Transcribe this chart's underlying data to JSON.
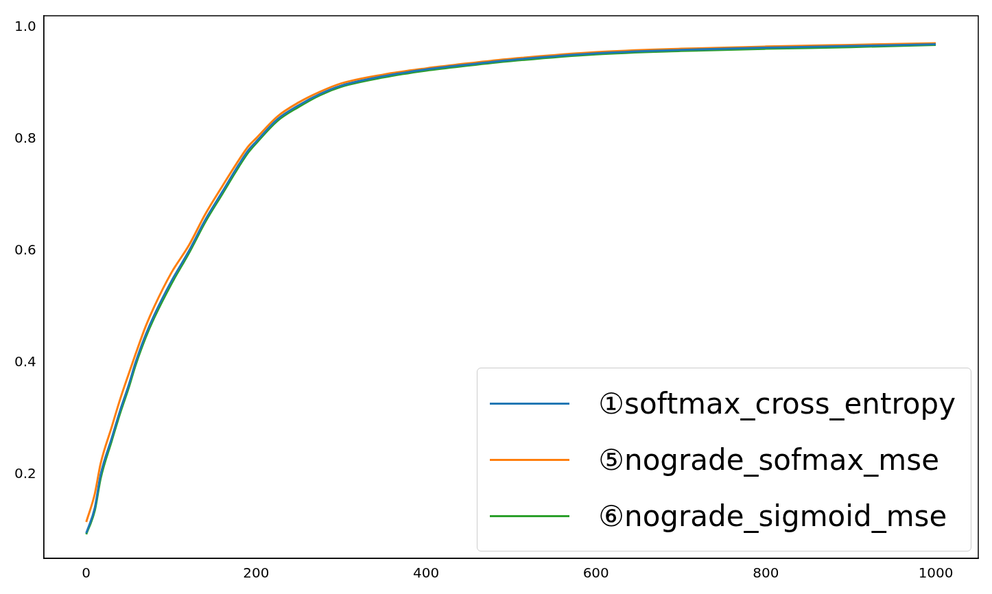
{
  "chart_data": {
    "type": "line",
    "x": [
      0,
      10,
      17,
      30,
      40,
      50,
      58,
      70,
      80,
      100,
      121,
      140,
      160,
      180,
      191,
      200,
      225,
      250,
      275,
      300,
      350,
      400,
      450,
      500,
      600,
      700,
      800,
      900,
      1000
    ],
    "series": [
      {
        "name": "①softmax_cross_entropy",
        "color": "#1f77b4",
        "values": [
          0.095,
          0.14,
          0.2,
          0.265,
          0.315,
          0.36,
          0.4,
          0.45,
          0.485,
          0.545,
          0.6,
          0.655,
          0.705,
          0.755,
          0.78,
          0.795,
          0.835,
          0.86,
          0.88,
          0.895,
          0.912,
          0.924,
          0.933,
          0.941,
          0.953,
          0.959,
          0.963,
          0.966,
          0.969
        ]
      },
      {
        "name": "⑤nograde_sofmax_mse",
        "color": "#ff7f0e",
        "values": [
          0.115,
          0.165,
          0.22,
          0.285,
          0.335,
          0.38,
          0.415,
          0.465,
          0.5,
          0.56,
          0.61,
          0.665,
          0.715,
          0.763,
          0.787,
          0.801,
          0.84,
          0.865,
          0.884,
          0.899,
          0.915,
          0.926,
          0.935,
          0.943,
          0.955,
          0.961,
          0.965,
          0.968,
          0.971
        ]
      },
      {
        "name": "⑥nograde_sigmoid_mse",
        "color": "#2ca02c",
        "values": [
          0.093,
          0.135,
          0.193,
          0.26,
          0.31,
          0.355,
          0.395,
          0.445,
          0.48,
          0.54,
          0.596,
          0.651,
          0.701,
          0.751,
          0.776,
          0.792,
          0.832,
          0.857,
          0.878,
          0.893,
          0.91,
          0.922,
          0.931,
          0.939,
          0.951,
          0.957,
          0.961,
          0.964,
          0.968
        ]
      }
    ],
    "xlim": [
      -50,
      1050
    ],
    "xticks": [
      0,
      200,
      400,
      600,
      800,
      1000
    ],
    "ylim": [
      0.05,
      1.02
    ],
    "yticks": [
      0.2,
      0.4,
      0.6,
      0.8,
      {
        "value": 1,
        "label": "1.0"
      }
    ],
    "legend": "bottom right",
    "grid": false,
    "marker": "none",
    "line_style": "solid"
  }
}
